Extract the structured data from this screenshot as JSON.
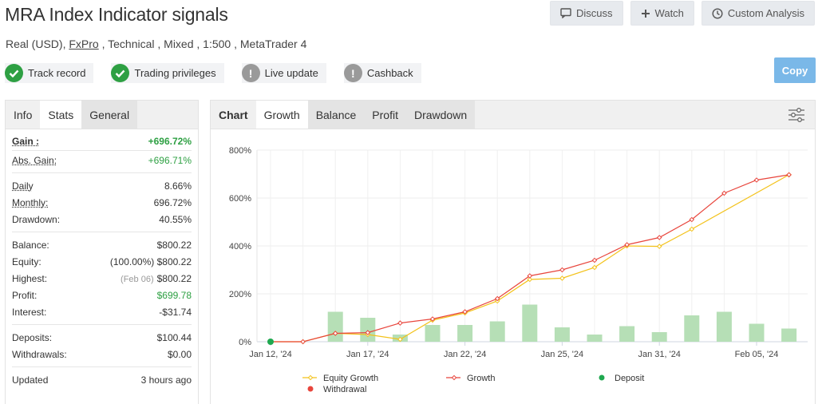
{
  "header": {
    "title": "MRA Index Indicator signals",
    "subtitle_prefix": "Real (USD), ",
    "broker": "FxPro",
    "subtitle_suffix": " , Technical , Mixed , 1:500 , MetaTrader 4"
  },
  "top_buttons": {
    "discuss": "Discuss",
    "watch": "Watch",
    "custom_analysis": "Custom Analysis"
  },
  "badges": [
    {
      "label": "Track record",
      "status": "ok"
    },
    {
      "label": "Trading privileges",
      "status": "ok"
    },
    {
      "label": "Live update",
      "status": "warn"
    },
    {
      "label": "Cashback",
      "status": "warn"
    }
  ],
  "copy_label": "Copy",
  "stats_tabs": [
    "Info",
    "Stats",
    "General"
  ],
  "stats": {
    "gain_label": "Gain :",
    "gain": "+696.72%",
    "abs_gain_label": "Abs. Gain:",
    "abs_gain": "+696.71%",
    "daily_label": "Daily",
    "daily": "8.66%",
    "monthly_label": "Monthly:",
    "monthly": "696.72%",
    "drawdown_label": "Drawdown:",
    "drawdown": "40.55%",
    "balance_label": "Balance:",
    "balance": "$800.22",
    "equity_label": "Equity:",
    "equity_pct": "(100.00%)",
    "equity": "$800.22",
    "highest_label": "Highest:",
    "highest_date": "(Feb 06)",
    "highest": "$800.22",
    "profit_label": "Profit:",
    "profit": "$699.78",
    "interest_label": "Interest:",
    "interest": "-$31.74",
    "deposits_label": "Deposits:",
    "deposits": "$100.44",
    "withdrawals_label": "Withdrawals:",
    "withdrawals": "$0.00",
    "updated_label": "Updated",
    "updated": "3 hours ago"
  },
  "chart_tabs": [
    "Chart",
    "Growth",
    "Balance",
    "Profit",
    "Drawdown"
  ],
  "colors": {
    "growth": "#e8453c",
    "equity": "#f3c21a",
    "deposit": "#1fa84f",
    "withdrawal": "#e8453c",
    "bars": "#b6dfb6",
    "accent_green": "#2ea043"
  },
  "chart_data": {
    "type": "line",
    "y_ticks": [
      "0%",
      "200%",
      "400%",
      "600%",
      "800%"
    ],
    "ylim": [
      0,
      800
    ],
    "x_tick_labels": [
      "Jan 12, '24",
      "Jan 17, '24",
      "Jan 22, '24",
      "Jan 25, '24",
      "Jan 31, '24",
      "Feb 05, '24"
    ],
    "x_tick_index": [
      0,
      3,
      6,
      9,
      12,
      15
    ],
    "series": [
      {
        "name": "Growth",
        "values": [
          0,
          0,
          35,
          38,
          78,
          95,
          125,
          180,
          275,
          300,
          340,
          405,
          435,
          510,
          620,
          675,
          697
        ]
      },
      {
        "name": "Equity Growth",
        "values": [
          0,
          0,
          35,
          30,
          10,
          90,
          120,
          170,
          260,
          265,
          310,
          400,
          398,
          470,
          null,
          null,
          697
        ]
      }
    ],
    "bars": [
      0,
      0,
      125,
      100,
      30,
      70,
      70,
      85,
      155,
      60,
      30,
      65,
      40,
      110,
      125,
      75,
      55
    ],
    "deposit_index": 0,
    "legend": [
      "Equity Growth",
      "Growth",
      "Deposit",
      "Withdrawal"
    ]
  }
}
